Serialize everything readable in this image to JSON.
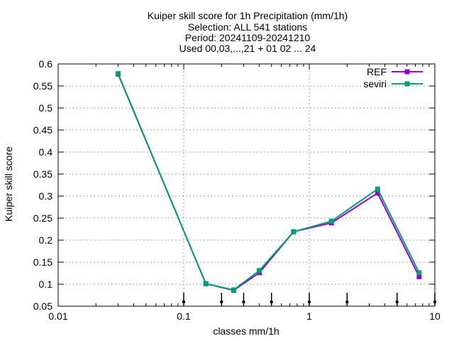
{
  "chart_data": {
    "type": "line",
    "title_lines": [
      "Kuiper skill score  for 1h Precipitation (mm/1h)",
      "Selection: ALL     541 stations",
      "Period: 20241109-20241210",
      "Used 00,03,...,21 + 01 02 ... 24"
    ],
    "xlabel": "classes mm/1h",
    "ylabel": "Kuiper skill score",
    "x_scale": "log",
    "xlim": [
      0.01,
      10
    ],
    "ylim": [
      0.05,
      0.6
    ],
    "x_ticks": [
      0.01,
      0.1,
      1,
      10
    ],
    "x_tick_labels": [
      "0.01",
      "0.1",
      "1",
      "10"
    ],
    "y_ticks": [
      0.05,
      0.1,
      0.15,
      0.2,
      0.25,
      0.3,
      0.35,
      0.4,
      0.45,
      0.5,
      0.55,
      0.6
    ],
    "y_tick_labels": [
      "0.05",
      "0.1",
      "0.15",
      "0.2",
      "0.25",
      "0.3",
      "0.35",
      "0.4",
      "0.45",
      "0.5",
      "0.55",
      "0.6"
    ],
    "grid": true,
    "legend_position": "top-right",
    "threshold_markers_x": [
      0.1,
      0.2,
      0.3,
      0.5,
      1,
      2,
      5,
      10
    ],
    "x": [
      0.03,
      0.15,
      0.25,
      0.4,
      0.75,
      1.5,
      3.5,
      7.5
    ],
    "series": [
      {
        "name": "REF",
        "color": "#9400d3",
        "values": [
          0.577,
          0.101,
          0.086,
          0.126,
          0.219,
          0.239,
          0.307,
          0.117
        ]
      },
      {
        "name": "seviri",
        "color": "#009e73",
        "values": [
          0.578,
          0.101,
          0.087,
          0.131,
          0.219,
          0.243,
          0.316,
          0.126
        ]
      }
    ]
  }
}
